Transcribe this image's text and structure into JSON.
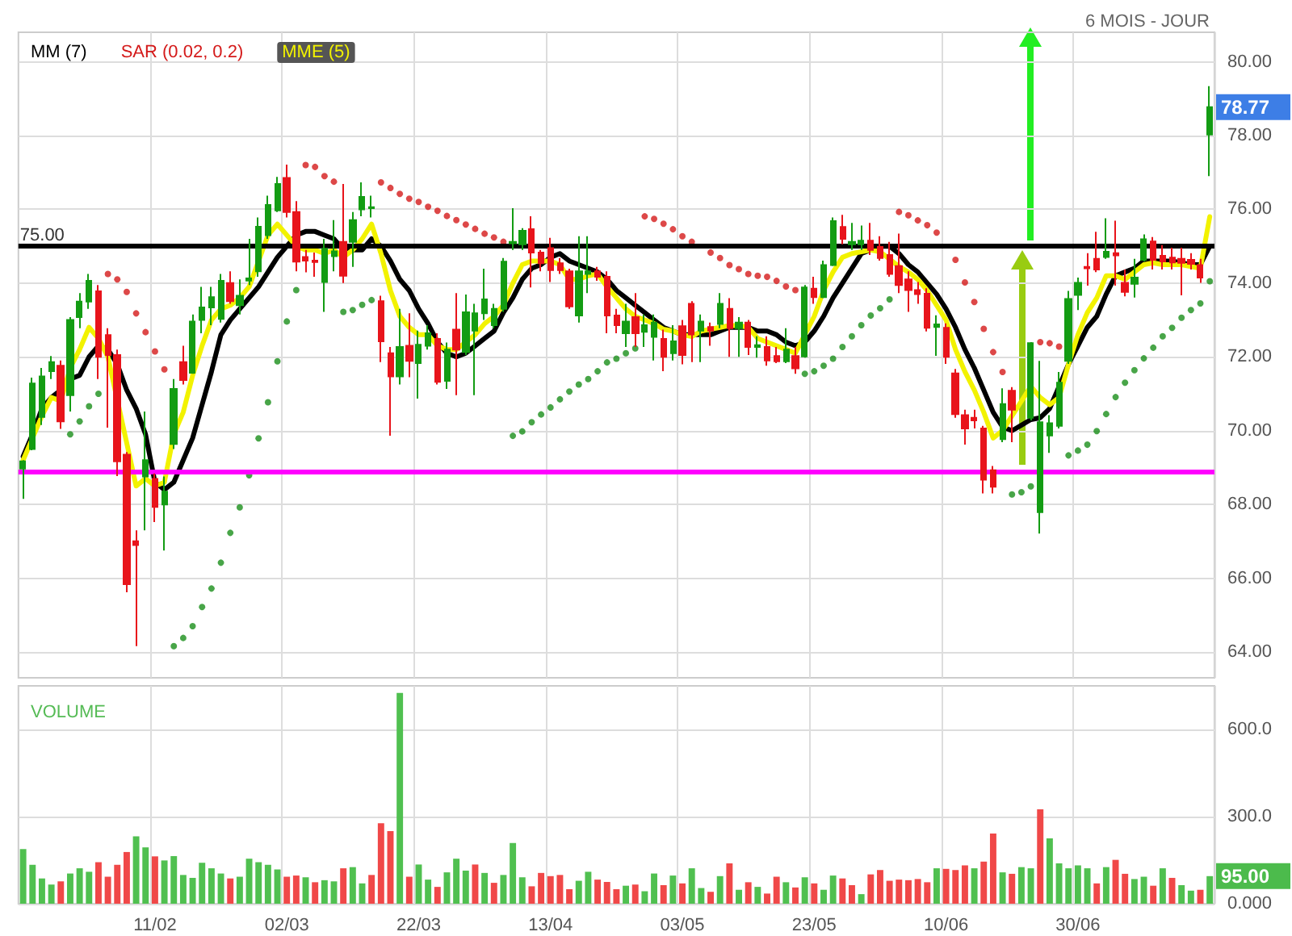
{
  "chart_data": [
    {
      "type": "candlestick",
      "subtitle": "6 MOIS - JOUR",
      "categories": [
        null,
        null,
        null,
        null,
        null,
        null,
        null,
        null,
        null,
        null,
        null,
        null,
        null,
        null,
        null,
        null,
        null,
        null,
        null,
        null,
        null,
        null,
        null,
        null,
        null,
        null,
        null,
        null,
        null,
        null,
        null,
        null,
        null,
        null,
        null,
        null,
        null,
        null,
        null,
        null,
        null,
        null,
        null,
        null,
        null,
        null,
        null,
        null,
        null,
        null,
        null,
        null,
        null,
        null,
        null,
        null,
        null,
        null,
        null,
        null,
        null,
        null,
        null,
        null,
        null,
        null,
        null,
        null,
        null,
        null,
        null,
        null,
        null,
        null,
        null,
        null,
        null,
        null,
        null,
        null,
        null,
        null,
        null,
        null,
        null,
        null,
        null,
        null,
        null,
        null,
        null,
        null,
        null,
        null,
        null,
        null,
        null,
        null,
        null,
        null,
        null,
        null,
        null,
        null,
        null,
        null,
        null,
        null,
        null,
        null,
        null,
        null,
        null,
        null,
        null,
        null,
        null,
        null,
        null,
        null,
        null,
        null,
        null,
        null,
        null,
        null,
        null
      ],
      "series": [
        {
          "type": "candlestick",
          "ohlc": [
            [
              68.97,
              69.2,
              68.15,
              69.17
            ],
            [
              69.5,
              71.44,
              69.47,
              71.28
            ],
            [
              70.37,
              71.7,
              70.15,
              71.47
            ],
            [
              71.61,
              72.02,
              71.4,
              71.86
            ],
            [
              71.76,
              71.9,
              70.05,
              70.25
            ],
            [
              70.96,
              73.08,
              70.52,
              73.0
            ],
            [
              73.08,
              73.73,
              72.78,
              73.5
            ],
            [
              73.5,
              74.25,
              73.3,
              74.06
            ],
            [
              73.78,
              73.95,
              71.4,
              72.0
            ],
            [
              72.59,
              72.78,
              70.08,
              72.05
            ],
            [
              72.05,
              72.2,
              68.77,
              69.17
            ],
            [
              69.35,
              69.42,
              65.62,
              65.84
            ],
            [
              67.0,
              67.3,
              64.16,
              66.9
            ],
            [
              68.76,
              70.52,
              67.3,
              69.2
            ],
            [
              68.69,
              68.84,
              67.52,
              67.93
            ],
            [
              68.0,
              68.76,
              66.75,
              68.35
            ],
            [
              69.64,
              71.4,
              69.5,
              71.13
            ],
            [
              71.86,
              72.3,
              71.25,
              71.37
            ],
            [
              71.57,
              73.15,
              71.54,
              72.96
            ],
            [
              73.0,
              73.9,
              72.64,
              73.34
            ],
            [
              73.34,
              73.9,
              72.86,
              73.62
            ],
            [
              73.03,
              74.25,
              72.93,
              74.06
            ],
            [
              74.0,
              74.32,
              73.44,
              73.51
            ],
            [
              73.4,
              74.1,
              73.15,
              73.66
            ],
            [
              74.07,
              75.2,
              73.95,
              74.13
            ],
            [
              74.32,
              75.78,
              74.17,
              75.53
            ],
            [
              75.3,
              76.37,
              75.2,
              76.12
            ],
            [
              75.97,
              76.88,
              75.93,
              76.69
            ],
            [
              76.85,
              77.21,
              75.78,
              75.93
            ],
            [
              75.93,
              76.22,
              74.32,
              74.58
            ],
            [
              74.71,
              74.9,
              74.29,
              74.61
            ],
            [
              74.61,
              74.83,
              74.17,
              74.57
            ],
            [
              74.03,
              75.2,
              73.22,
              74.93
            ],
            [
              74.73,
              75.71,
              74.32,
              74.86
            ],
            [
              75.12,
              76.69,
              74.0,
              74.2
            ],
            [
              75.12,
              75.93,
              74.44,
              75.71
            ],
            [
              76.0,
              76.73,
              75.81,
              76.34
            ],
            [
              76.03,
              76.37,
              75.78,
              76.06
            ],
            [
              73.51,
              73.66,
              71.86,
              72.42
            ],
            [
              72.1,
              72.27,
              69.86,
              71.47
            ],
            [
              71.47,
              73.3,
              71.25,
              72.27
            ],
            [
              72.3,
              73.18,
              71.45,
              71.89
            ],
            [
              71.83,
              72.71,
              70.87,
              72.33
            ],
            [
              72.3,
              72.86,
              72.2,
              72.64
            ],
            [
              72.49,
              72.64,
              71.25,
              71.32
            ],
            [
              71.35,
              72.39,
              71.13,
              72.2
            ],
            [
              72.74,
              73.73,
              70.96,
              72.2
            ],
            [
              72.13,
              73.69,
              72.05,
              73.21
            ],
            [
              72.71,
              73.44,
              70.96,
              73.18
            ],
            [
              73.18,
              74.39,
              73.0,
              73.56
            ],
            [
              72.86,
              73.44,
              72.78,
              73.3
            ],
            [
              73.3,
              74.68,
              73.22,
              74.58
            ],
            [
              75.08,
              76.03,
              74.9,
              75.12
            ],
            [
              75.05,
              75.49,
              74.9,
              75.42
            ],
            [
              75.46,
              75.81,
              73.88,
              74.83
            ],
            [
              74.83,
              74.9,
              74.32,
              74.54
            ],
            [
              74.95,
              75.23,
              74.03,
              74.35
            ],
            [
              74.54,
              74.68,
              74.25,
              74.35
            ],
            [
              74.32,
              74.39,
              73.3,
              73.37
            ],
            [
              73.12,
              75.27,
              72.93,
              74.32
            ],
            [
              74.25,
              75.27,
              73.73,
              74.32
            ],
            [
              74.32,
              74.44,
              74.06,
              74.17
            ],
            [
              74.17,
              74.32,
              72.64,
              73.12
            ],
            [
              73.12,
              73.3,
              72.64,
              72.86
            ],
            [
              72.64,
              73.44,
              72.27,
              72.96
            ],
            [
              73.08,
              73.73,
              72.27,
              72.64
            ],
            [
              72.68,
              73.15,
              72.27,
              72.86
            ],
            [
              72.54,
              73.15,
              71.9,
              72.93
            ],
            [
              72.49,
              72.74,
              71.61,
              72.0
            ],
            [
              72.1,
              72.86,
              71.9,
              72.42
            ],
            [
              72.83,
              73.0,
              71.8,
              72.05
            ],
            [
              73.44,
              73.51,
              71.86,
              72.61
            ],
            [
              72.71,
              73.15,
              71.86,
              72.96
            ],
            [
              72.81,
              72.93,
              72.3,
              72.71
            ],
            [
              72.89,
              73.73,
              72.78,
              73.44
            ],
            [
              73.3,
              73.59,
              72.0,
              72.78
            ],
            [
              72.78,
              73.08,
              72.0,
              72.93
            ],
            [
              72.93,
              73.0,
              72.05,
              72.27
            ],
            [
              72.27,
              72.56,
              71.98,
              72.32
            ],
            [
              72.27,
              72.56,
              71.76,
              71.9
            ],
            [
              72.02,
              72.27,
              71.83,
              71.88
            ],
            [
              71.88,
              72.78,
              71.83,
              72.2
            ],
            [
              72.02,
              72.27,
              71.54,
              71.69
            ],
            [
              72.01,
              73.95,
              71.98,
              73.88
            ],
            [
              73.85,
              74.17,
              73.44,
              73.62
            ],
            [
              73.62,
              74.61,
              73.59,
              74.49
            ],
            [
              74.49,
              75.78,
              74.46,
              75.68
            ],
            [
              75.52,
              75.85,
              75.05,
              75.2
            ],
            [
              75.05,
              75.63,
              74.9,
              75.12
            ],
            [
              75.05,
              75.56,
              74.9,
              75.15
            ],
            [
              75.15,
              75.63,
              74.76,
              74.9
            ],
            [
              74.98,
              75.27,
              74.61,
              74.68
            ],
            [
              74.76,
              75.12,
              74.17,
              74.25
            ],
            [
              74.46,
              75.34,
              73.73,
              73.95
            ],
            [
              74.1,
              74.32,
              73.22,
              73.81
            ],
            [
              73.81,
              74.03,
              73.44,
              73.7
            ],
            [
              73.71,
              73.86,
              72.69,
              72.79
            ],
            [
              72.81,
              73.13,
              72.03,
              72.88
            ],
            [
              72.79,
              72.91,
              71.81,
              72.0
            ],
            [
              71.55,
              71.67,
              70.35,
              70.45
            ],
            [
              70.42,
              70.57,
              69.62,
              70.06
            ],
            [
              70.35,
              70.57,
              70.06,
              70.28
            ],
            [
              70.06,
              70.13,
              68.3,
              68.67
            ],
            [
              68.93,
              69.04,
              68.3,
              68.48
            ],
            [
              69.77,
              71.15,
              69.69,
              70.72
            ],
            [
              71.08,
              71.18,
              69.69,
              70.57
            ],
            null,
            [
              70.35,
              72.4,
              70.28,
              72.37
            ],
            [
              67.79,
              71.89,
              67.21,
              70.23
            ],
            [
              69.87,
              70.42,
              69.4,
              70.2
            ],
            [
              70.13,
              71.59,
              70.06,
              71.3
            ],
            [
              71.89,
              73.79,
              71.81,
              73.57
            ],
            [
              73.68,
              74.15,
              73.27,
              74.01
            ],
            [
              74.44,
              74.81,
              73.93,
              74.4
            ],
            [
              74.66,
              75.39,
              74.3,
              74.37
            ],
            [
              74.71,
              75.76,
              74.66,
              74.85
            ],
            [
              74.81,
              75.69,
              73.93,
              74.75
            ],
            [
              74.01,
              74.37,
              73.64,
              73.76
            ],
            [
              73.98,
              74.66,
              73.61,
              74.15
            ],
            [
              74.63,
              75.32,
              74.59,
              75.19
            ],
            [
              75.13,
              75.25,
              74.37,
              74.63
            ],
            [
              74.74,
              75.03,
              74.37,
              74.59
            ],
            [
              74.69,
              74.96,
              74.37,
              74.56
            ],
            [
              74.66,
              74.96,
              73.67,
              74.55
            ],
            [
              74.63,
              74.81,
              74.37,
              74.52
            ],
            [
              74.49,
              74.66,
              74.01,
              74.15
            ],
            [
              78.03,
              79.34,
              76.9,
              78.77
            ]
          ],
          "colors": [
            "#139c13",
            "#139c13",
            "#139c13",
            "#139c13",
            "#e8141b",
            "#139c13",
            "#139c13",
            "#139c13",
            "#e8141b",
            "#e8141b",
            "#e8141b",
            "#e8141b",
            "#e8141b",
            "#139c13",
            "#e8141b",
            "#139c13",
            "#139c13",
            "#e8141b",
            "#139c13",
            "#139c13",
            "#139c13",
            "#139c13",
            "#e8141b",
            "#139c13",
            "#139c13",
            "#139c13",
            "#139c13",
            "#139c13",
            "#e8141b",
            "#e8141b",
            "#e8141b",
            "#e8141b",
            "#139c13",
            "#139c13",
            "#e8141b",
            "#139c13",
            "#139c13",
            "#139c13",
            "#e8141b",
            "#e8141b",
            "#139c13",
            "#e8141b",
            "#139c13",
            "#139c13",
            "#e8141b",
            "#139c13",
            "#e8141b",
            "#139c13",
            "#139c13",
            "#139c13",
            "#139c13",
            "#139c13",
            "#139c13",
            "#139c13",
            "#e8141b",
            "#e8141b",
            "#e8141b",
            "#e8141b",
            "#e8141b",
            "#139c13",
            "#139c13",
            "#e8141b",
            "#e8141b",
            "#e8141b",
            "#139c13",
            "#e8141b",
            "#139c13",
            "#139c13",
            "#e8141b",
            "#139c13",
            "#e8141b",
            "#e8141b",
            "#139c13",
            "#e8141b",
            "#139c13",
            "#e8141b",
            "#139c13",
            "#e8141b",
            "#139c13",
            "#e8141b",
            "#e8141b",
            "#139c13",
            "#e8141b",
            "#139c13",
            "#e8141b",
            "#139c13",
            "#139c13",
            "#e8141b",
            "#139c13",
            "#139c13",
            "#e8141b",
            "#e8141b",
            "#e8141b",
            "#e8141b",
            "#e8141b",
            "#e8141b",
            "#e8141b",
            "#139c13",
            "#e8141b",
            "#e8141b",
            "#e8141b",
            "#e8141b",
            "#e8141b",
            "#e8141b",
            "#139c13",
            "#e8141b",
            null,
            "#139c13",
            "#139c13",
            "#139c13",
            "#139c13",
            "#139c13",
            "#139c13",
            "#e8141b",
            "#e8141b",
            "#139c13",
            "#e8141b",
            "#e8141b",
            "#139c13",
            "#139c13",
            "#e8141b",
            "#e8141b",
            "#e8141b",
            "#e8141b",
            "#e8141b",
            "#e8141b",
            "#139c13"
          ]
        },
        {
          "type": "line",
          "name": "MM (7)",
          "color": "#000000",
          "marker": "none",
          "values": [
            69.3,
            69.9,
            70.6,
            70.9,
            71.1,
            71.4,
            71.5,
            72.0,
            72.3,
            72.2,
            71.8,
            71.1,
            70.6,
            69.9,
            68.6,
            68.4,
            68.6,
            69.2,
            69.8,
            70.7,
            71.6,
            72.6,
            73.0,
            73.3,
            73.6,
            73.9,
            74.3,
            74.7,
            75.0,
            75.3,
            75.4,
            75.4,
            75.3,
            75.2,
            74.9,
            74.9,
            74.9,
            75.2,
            75.0,
            74.6,
            74.1,
            73.8,
            73.3,
            72.9,
            72.4,
            72.1,
            72.0,
            72.1,
            72.3,
            72.5,
            72.7,
            73.2,
            73.6,
            74.1,
            74.4,
            74.5,
            74.7,
            74.8,
            74.6,
            74.5,
            74.4,
            74.3,
            74.1,
            73.8,
            73.6,
            73.4,
            73.2,
            73.0,
            72.8,
            72.7,
            72.6,
            72.6,
            72.6,
            72.6,
            72.7,
            72.8,
            72.8,
            72.8,
            72.7,
            72.7,
            72.6,
            72.4,
            72.3,
            72.4,
            72.7,
            73.1,
            73.6,
            74.0,
            74.4,
            74.8,
            74.9,
            75.0,
            75.0,
            74.8,
            74.5,
            74.3,
            74.0,
            73.7,
            73.3,
            72.8,
            72.2,
            71.7,
            71.1,
            70.5,
            70.1,
            70.0,
            null,
            70.3,
            70.35,
            70.6,
            71.2,
            71.8,
            72.3,
            72.8,
            73.1,
            73.7,
            74.2,
            74.3,
            74.4,
            74.6,
            74.6,
            74.6,
            74.6,
            74.55,
            74.5,
            74.5,
            75.0
          ]
        },
        {
          "type": "scatter",
          "name": "SAR (0.02, 0.2)",
          "color": "#d41a1a",
          "marker": "circle",
          "values": [
            null,
            null,
            null,
            null,
            null,
            null,
            null,
            null,
            null,
            74.25,
            74.1,
            73.76,
            73.18,
            72.67,
            72.15,
            71.66,
            null,
            null,
            null,
            null,
            null,
            null,
            null,
            null,
            null,
            null,
            null,
            null,
            null,
            null,
            77.2,
            77.15,
            76.9,
            76.75,
            null,
            null,
            null,
            null,
            76.73,
            76.58,
            76.42,
            76.29,
            76.2,
            76.07,
            75.96,
            75.82,
            75.71,
            75.59,
            75.47,
            75.34,
            75.24,
            75.12,
            null,
            null,
            null,
            null,
            null,
            null,
            null,
            null,
            null,
            null,
            null,
            null,
            null,
            null,
            75.81,
            75.74,
            75.61,
            75.46,
            75.27,
            75.12,
            null,
            74.83,
            74.68,
            74.49,
            74.38,
            74.25,
            74.2,
            74.17,
            74.06,
            73.91,
            73.81,
            null,
            null,
            null,
            null,
            null,
            null,
            null,
            null,
            null,
            null,
            75.93,
            75.84,
            75.7,
            75.57,
            75.37,
            null,
            74.63,
            74.02,
            73.49,
            72.76,
            72.13,
            71.59,
            null,
            null,
            null,
            72.4,
            72.37,
            72.28,
            null,
            null,
            null,
            null,
            null,
            null,
            null,
            null,
            null,
            null,
            null,
            null,
            null,
            null,
            null,
            null
          ]
        },
        {
          "type": "scatter",
          "color": "#1a8f1a",
          "marker": "circle",
          "values": [
            null,
            null,
            null,
            null,
            null,
            69.9,
            70.25,
            70.66,
            71.0,
            null,
            null,
            null,
            null,
            null,
            null,
            null,
            64.16,
            64.38,
            64.7,
            65.22,
            65.72,
            66.42,
            67.23,
            67.92,
            68.79,
            69.79,
            70.77,
            71.88,
            72.96,
            73.81,
            null,
            null,
            null,
            null,
            73.22,
            73.27,
            73.41,
            73.54,
            null,
            null,
            null,
            null,
            null,
            null,
            null,
            null,
            null,
            null,
            null,
            null,
            null,
            null,
            69.86,
            69.98,
            70.23,
            70.44,
            70.63,
            70.85,
            71.06,
            71.25,
            71.4,
            71.61,
            71.85,
            71.95,
            72.1,
            72.23,
            null,
            null,
            null,
            null,
            null,
            null,
            null,
            null,
            null,
            null,
            null,
            null,
            null,
            null,
            null,
            null,
            null,
            71.54,
            71.61,
            71.76,
            71.95,
            72.27,
            72.56,
            72.86,
            73.12,
            73.32,
            73.56,
            null,
            null,
            null,
            null,
            null,
            null,
            null,
            null,
            null,
            null,
            null,
            null,
            68.27,
            68.33,
            68.49,
            null,
            null,
            null,
            69.33,
            69.46,
            69.62,
            69.99,
            70.45,
            70.91,
            71.3,
            71.64,
            71.96,
            72.25,
            72.56,
            72.79,
            73.06,
            73.27,
            73.45,
            74.05
          ]
        },
        {
          "type": "line",
          "name": "MME (5)",
          "color": "#f2f200",
          "marker": "none",
          "values": [
            69.2,
            69.8,
            70.4,
            70.9,
            70.8,
            71.7,
            72.2,
            72.8,
            72.5,
            72.0,
            null,
            null,
            68.5,
            68.7,
            68.5,
            68.6,
            69.9,
            70.5,
            71.5,
            72.3,
            73.0,
            73.3,
            73.4,
            73.6,
            73.9,
            74.6,
            75.3,
            75.6,
            75.3,
            75.0,
            74.9,
            74.9,
            74.8,
            74.9,
            74.7,
            74.9,
            75.2,
            75.6,
            74.8,
            73.8,
            73.1,
            72.8,
            72.6,
            72.6,
            72.3,
            72.2,
            72.2,
            72.4,
            72.6,
            72.9,
            73.1,
            73.4,
            74.0,
            74.5,
            74.6,
            74.6,
            74.6,
            74.5,
            74.1,
            74.1,
            74.2,
            74.25,
            73.9,
            73.6,
            73.3,
            73.1,
            73.0,
            72.9,
            72.75,
            72.7,
            72.6,
            72.55,
            72.7,
            72.75,
            72.8,
            72.85,
            72.85,
            72.8,
            72.5,
            72.4,
            72.3,
            72.2,
            72.1,
            72.6,
            73.1,
            73.8,
            74.3,
            74.7,
            74.8,
            74.85,
            74.9,
            74.85,
            74.65,
            74.45,
            74.3,
            74.1,
            73.8,
            73.4,
            73.0,
            72.2,
            71.6,
            71.1,
            70.5,
            69.8,
            70.0,
            70.4,
            null,
            71.2,
            70.9,
            70.7,
            70.9,
            71.8,
            72.6,
            73.2,
            73.6,
            74.2,
            74.2,
            74.1,
            74.3,
            74.5,
            74.55,
            74.5,
            74.5,
            74.5,
            74.45,
            74.4,
            75.8
          ]
        }
      ],
      "ylim": [
        63.3,
        80.8
      ],
      "yticks": [
        {
          "value": 64,
          "label": "64.00"
        },
        {
          "value": 66,
          "label": "66.00"
        },
        {
          "value": 68,
          "label": "68.00"
        },
        {
          "value": 70,
          "label": "70.00"
        },
        {
          "value": 72,
          "label": "72.00"
        },
        {
          "value": 74,
          "label": "74.00"
        },
        {
          "value": 76,
          "label": "76.00"
        },
        {
          "value": 78,
          "label": "78.00"
        },
        {
          "value": 80,
          "label": "80.00"
        }
      ],
      "tick_labels": "y",
      "grid": true,
      "legend": "top left",
      "ref_lines": [
        {
          "axis": "y",
          "value": 75,
          "label": "75.00",
          "color": "#000000"
        },
        {
          "axis": "y",
          "value": 68.88,
          "color": "#ff00ff"
        }
      ],
      "annotations": [
        "78.77"
      ]
    },
    {
      "type": "bar",
      "title": "VOLUME",
      "categories": [
        null,
        null,
        null,
        null,
        null,
        null,
        null,
        null,
        null,
        null,
        null,
        null,
        null,
        null,
        "11/02",
        null,
        null,
        null,
        null,
        null,
        null,
        null,
        null,
        null,
        null,
        null,
        null,
        null,
        "02/03",
        null,
        null,
        null,
        null,
        null,
        null,
        null,
        null,
        null,
        null,
        null,
        null,
        null,
        "22/03",
        null,
        null,
        null,
        null,
        null,
        null,
        null,
        null,
        null,
        null,
        null,
        null,
        null,
        "13/04",
        null,
        null,
        null,
        null,
        null,
        null,
        null,
        null,
        null,
        null,
        null,
        null,
        null,
        "03/05",
        null,
        null,
        null,
        null,
        null,
        null,
        null,
        null,
        null,
        null,
        null,
        null,
        null,
        "23/05",
        null,
        null,
        null,
        null,
        null,
        null,
        null,
        null,
        null,
        null,
        null,
        null,
        null,
        "10/06",
        null,
        null,
        null,
        null,
        null,
        null,
        null,
        null,
        null,
        null,
        null,
        null,
        null,
        "30/06",
        null,
        null,
        null,
        null,
        null,
        null,
        null,
        null,
        null,
        null,
        null,
        null,
        null,
        null
      ],
      "values": [
        188,
        134,
        87,
        66,
        77,
        104,
        122,
        110,
        143,
        93,
        134,
        178,
        232,
        194,
        163,
        149,
        164,
        99,
        89,
        141,
        122,
        104,
        87,
        93,
        155,
        143,
        134,
        118,
        93,
        97,
        91,
        74,
        81,
        77,
        122,
        126,
        70,
        99,
        277,
        250,
        726,
        93,
        135,
        83,
        58,
        108,
        155,
        114,
        135,
        106,
        72,
        99,
        209,
        91,
        60,
        106,
        95,
        99,
        50,
        79,
        110,
        83,
        75,
        50,
        62,
        66,
        43,
        104,
        64,
        97,
        70,
        122,
        54,
        41,
        95,
        139,
        48,
        74,
        58,
        35,
        93,
        74,
        56,
        91,
        70,
        48,
        97,
        87,
        64,
        33,
        101,
        116,
        79,
        83,
        81,
        85,
        74,
        122,
        120,
        116,
        132,
        122,
        145,
        242,
        108,
        103,
        126,
        122,
        325,
        225,
        139,
        122,
        132,
        122,
        70,
        126,
        151,
        103,
        85,
        93,
        62,
        122,
        89,
        64,
        45,
        48,
        95
      ],
      "colors": [
        "#50c050",
        "#50c050",
        "#50c050",
        "#50c050",
        "#f04848",
        "#50c050",
        "#50c050",
        "#50c050",
        "#f04848",
        "#f04848",
        "#f04848",
        "#f04848",
        "#50c050",
        "#50c050",
        "#f04848",
        "#50c050",
        "#50c050",
        "#50c050",
        "#50c050",
        "#50c050",
        "#50c050",
        "#50c050",
        "#f04848",
        "#50c050",
        "#50c050",
        "#50c050",
        "#50c050",
        "#50c050",
        "#f04848",
        "#f04848",
        "#50c050",
        "#f04848",
        "#50c050",
        "#50c050",
        "#f04848",
        "#50c050",
        "#50c050",
        "#f04848",
        "#f04848",
        "#f04848",
        "#50c050",
        "#f04848",
        "#50c050",
        "#50c050",
        "#f04848",
        "#50c050",
        "#50c050",
        "#50c050",
        "#f04848",
        "#50c050",
        "#f04848",
        "#50c050",
        "#50c050",
        "#50c050",
        "#f04848",
        "#f04848",
        "#f04848",
        "#f04848",
        "#f04848",
        "#50c050",
        "#50c050",
        "#f04848",
        "#f04848",
        "#f04848",
        "#50c050",
        "#f04848",
        "#50c050",
        "#50c050",
        "#f04848",
        "#50c050",
        "#f04848",
        "#50c050",
        "#50c050",
        "#f04848",
        "#50c050",
        "#f04848",
        "#50c050",
        "#f04848",
        "#50c050",
        "#f04848",
        "#f04848",
        "#50c050",
        "#f04848",
        "#50c050",
        "#f04848",
        "#50c050",
        "#50c050",
        "#f04848",
        "#f04848",
        "#50c050",
        "#f04848",
        "#f04848",
        "#f04848",
        "#f04848",
        "#f04848",
        "#f04848",
        "#f04848",
        "#50c050",
        "#f04848",
        "#f04848",
        "#f04848",
        "#50c050",
        "#f04848",
        "#f04848",
        "#50c050",
        "#f04848",
        "#50c050",
        "#50c050",
        "#f04848",
        "#50c050",
        "#50c050",
        "#50c050",
        "#50c050",
        "#50c050",
        "#f04848",
        "#50c050",
        "#f04848",
        "#f04848",
        "#50c050",
        "#50c050",
        "#f04848",
        "#50c050",
        "#f04848",
        "#50c050",
        "#50c050",
        "#f04848",
        "#50c050"
      ],
      "ylim": [
        0,
        750
      ],
      "yticks": [
        {
          "value": 0,
          "label": "0.000"
        },
        {
          "value": 300,
          "label": "300.0"
        },
        {
          "value": 600,
          "label": "600.0"
        }
      ],
      "grid": true,
      "annotations": [
        "95.00"
      ]
    }
  ]
}
